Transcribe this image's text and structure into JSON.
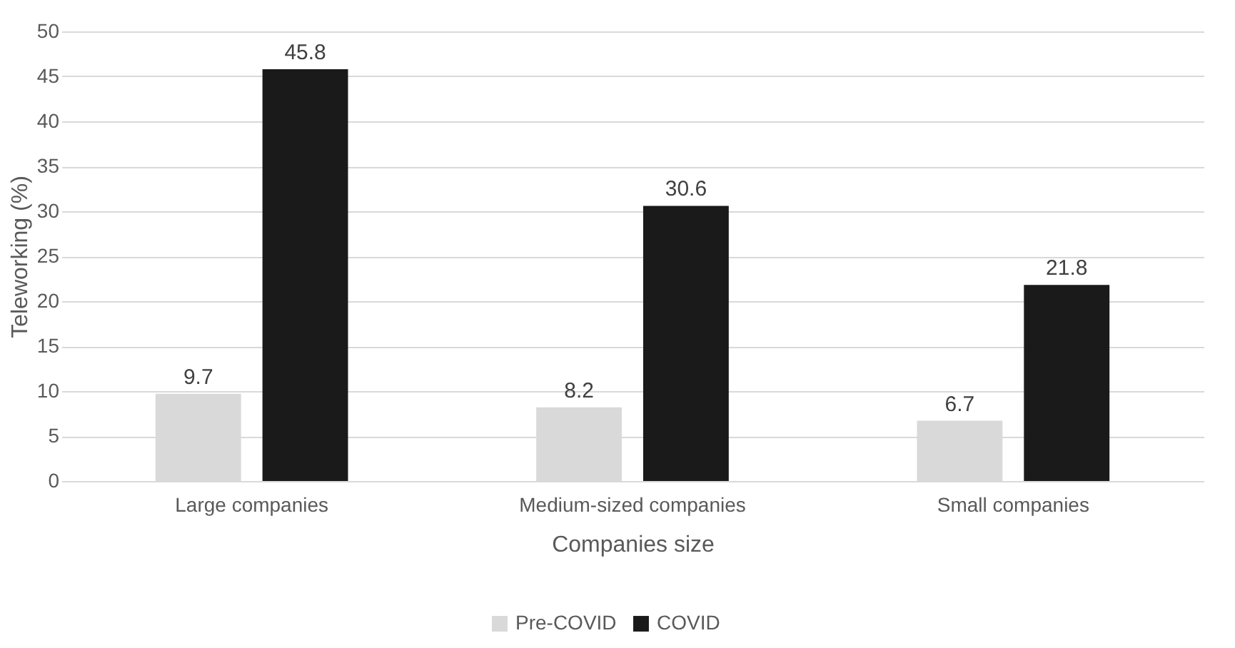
{
  "chart_data": {
    "type": "bar",
    "xlabel": "Companies size",
    "ylabel": "Teleworking (%)",
    "categories": [
      "Large companies",
      "Medium-sized companies",
      "Small companies"
    ],
    "series": [
      {
        "name": "Pre-COVID",
        "color": "#d9d9d9",
        "values": [
          9.7,
          8.2,
          6.7
        ]
      },
      {
        "name": "COVID",
        "color": "#1a1a1a",
        "values": [
          45.8,
          30.6,
          21.8
        ]
      }
    ],
    "ylim": [
      0,
      50
    ],
    "yticks": [
      0,
      5,
      10,
      15,
      20,
      25,
      30,
      35,
      40,
      45,
      50
    ],
    "grid": "y",
    "legend": "bottom",
    "data_labels": true
  }
}
